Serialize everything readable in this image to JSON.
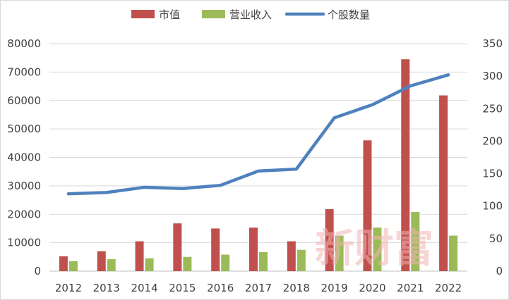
{
  "chart_data": {
    "type": "bar",
    "categories": [
      "2012",
      "2013",
      "2014",
      "2015",
      "2016",
      "2017",
      "2018",
      "2019",
      "2020",
      "2021",
      "2022"
    ],
    "series": [
      {
        "name": "市值",
        "kind": "bar",
        "axis": "left",
        "color": "#c0504d",
        "values": [
          5200,
          7000,
          10500,
          16800,
          15000,
          15300,
          10500,
          21800,
          46000,
          74500,
          61800
        ]
      },
      {
        "name": "营业收入",
        "kind": "bar",
        "axis": "left",
        "color": "#9bbb59",
        "values": [
          3500,
          4200,
          4500,
          5000,
          5800,
          6700,
          7500,
          12500,
          15300,
          20800,
          12500
        ]
      },
      {
        "name": "个股数量",
        "kind": "line",
        "axis": "right",
        "color": "#4f81bd",
        "values": [
          119,
          121,
          129,
          127,
          132,
          154,
          157,
          236,
          256,
          285,
          302
        ]
      }
    ],
    "left_axis": {
      "min": 0,
      "max": 80000,
      "ticks": [
        "0",
        "10000",
        "20000",
        "30000",
        "40000",
        "50000",
        "60000",
        "70000",
        "80000"
      ]
    },
    "right_axis": {
      "min": 0,
      "max": 350,
      "ticks": [
        "0",
        "50",
        "100",
        "150",
        "200",
        "250",
        "300",
        "350"
      ]
    },
    "grid": true,
    "legend": "top-center"
  },
  "watermark": "新财富"
}
